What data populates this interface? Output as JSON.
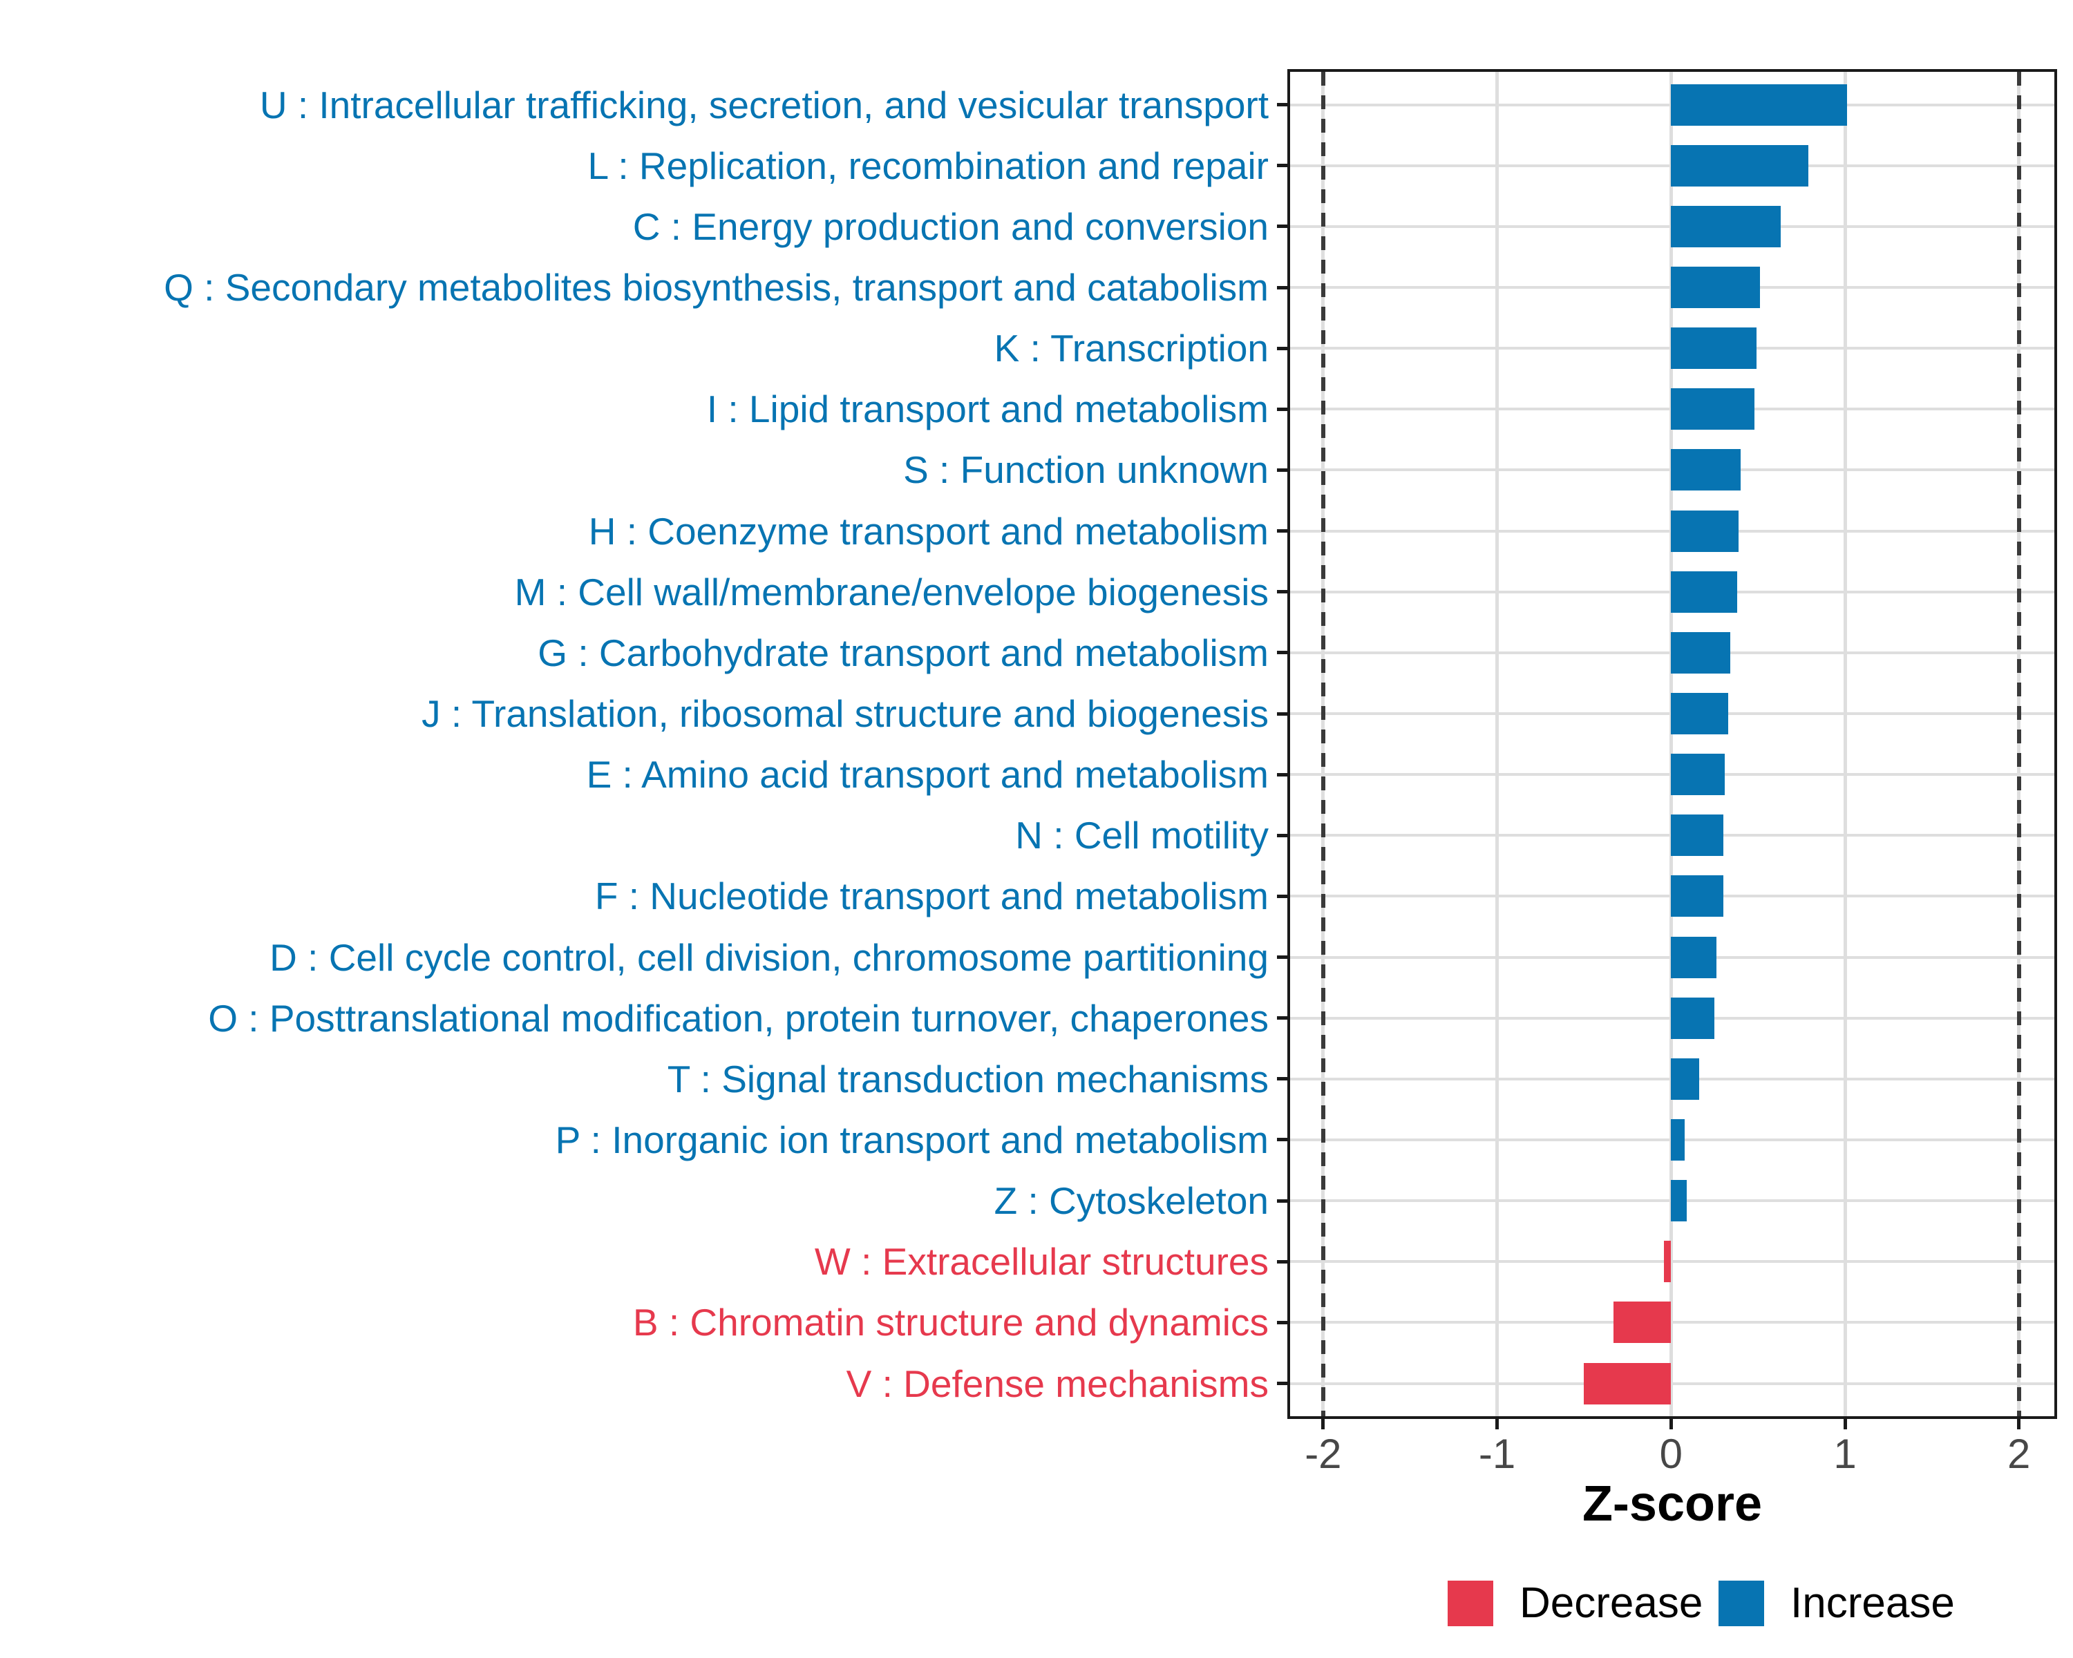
{
  "chart_data": {
    "type": "bar",
    "orientation": "horizontal",
    "title": "",
    "xlabel": "Z-score",
    "x_ticks": [
      "-2",
      "-1",
      "0",
      "1",
      "2"
    ],
    "x_tick_values": [
      -2,
      -1,
      0,
      1,
      2
    ],
    "xlim": [
      -2.21,
      2.22
    ],
    "reference_lines": [
      -2,
      2
    ],
    "grid": "major-only",
    "legend_position": "bottom",
    "colors": {
      "increase": "#0774B2",
      "decrease": "#E6394D",
      "gridline": "#DEDEDE",
      "axis_text": "#474747",
      "axis_line": "#1A1A1A",
      "reference_line": "#3A3A3A"
    },
    "rows": [
      {
        "label": "U : Intracellular trafficking, secretion, and vesicular transport",
        "value": 1.01,
        "group": "Increase"
      },
      {
        "label": "L : Replication, recombination and repair",
        "value": 0.79,
        "group": "Increase"
      },
      {
        "label": "C : Energy production and conversion",
        "value": 0.63,
        "group": "Increase"
      },
      {
        "label": "Q : Secondary metabolites biosynthesis, transport and catabolism",
        "value": 0.51,
        "group": "Increase"
      },
      {
        "label": "K : Transcription",
        "value": 0.49,
        "group": "Increase"
      },
      {
        "label": "I : Lipid transport and metabolism",
        "value": 0.48,
        "group": "Increase"
      },
      {
        "label": "S : Function unknown",
        "value": 0.4,
        "group": "Increase"
      },
      {
        "label": "H : Coenzyme transport and metabolism",
        "value": 0.39,
        "group": "Increase"
      },
      {
        "label": "M : Cell wall/membrane/envelope biogenesis",
        "value": 0.38,
        "group": "Increase"
      },
      {
        "label": "G : Carbohydrate transport and metabolism",
        "value": 0.34,
        "group": "Increase"
      },
      {
        "label": "J : Translation, ribosomal structure and biogenesis",
        "value": 0.33,
        "group": "Increase"
      },
      {
        "label": "E : Amino acid transport and metabolism",
        "value": 0.31,
        "group": "Increase"
      },
      {
        "label": "N : Cell motility",
        "value": 0.3,
        "group": "Increase"
      },
      {
        "label": "F : Nucleotide transport and metabolism",
        "value": 0.3,
        "group": "Increase"
      },
      {
        "label": "D : Cell cycle control, cell division, chromosome partitioning",
        "value": 0.26,
        "group": "Increase"
      },
      {
        "label": "O : Posttranslational modification, protein turnover, chaperones",
        "value": 0.25,
        "group": "Increase"
      },
      {
        "label": "T : Signal transduction mechanisms",
        "value": 0.16,
        "group": "Increase"
      },
      {
        "label": "P : Inorganic ion transport and metabolism",
        "value": 0.08,
        "group": "Increase"
      },
      {
        "label": "Z : Cytoskeleton",
        "value": 0.09,
        "group": "Increase"
      },
      {
        "label": "W : Extracellular structures",
        "value": -0.04,
        "group": "Decrease"
      },
      {
        "label": "B : Chromatin structure and dynamics",
        "value": -0.33,
        "group": "Decrease"
      },
      {
        "label": "V : Defense mechanisms",
        "value": -0.5,
        "group": "Decrease"
      }
    ],
    "legend": [
      {
        "label": "Decrease",
        "color": "#E6394D"
      },
      {
        "label": "Increase",
        "color": "#0774B2"
      }
    ]
  }
}
